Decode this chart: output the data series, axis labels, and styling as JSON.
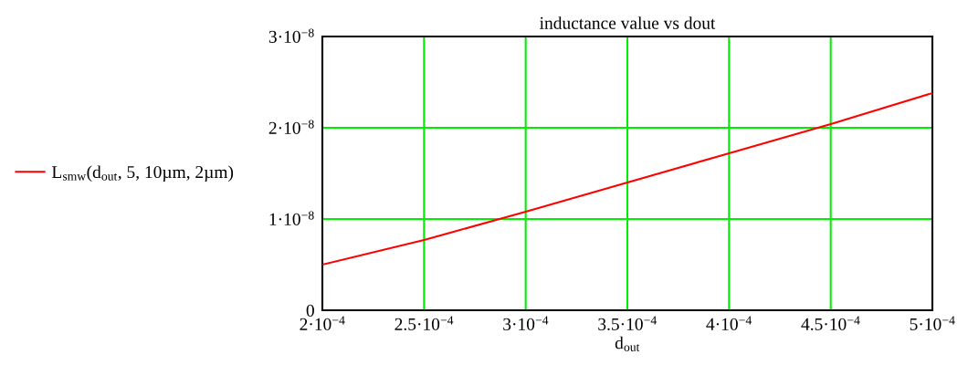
{
  "chart_data": {
    "type": "line",
    "title": "inductance value vs dout",
    "xlabel": "d$_{out}$",
    "x": [
      0.0002,
      0.00025,
      0.0003,
      0.00035,
      0.0004,
      0.00045,
      0.0005
    ],
    "series": [
      {
        "name": "L$_{smw}$(d$_{out}$, 5, 10µm, 2µm)",
        "color": "#ff0000",
        "values": [
          5e-09,
          7.7e-09,
          1.08e-08,
          1.4e-08,
          1.72e-08,
          2.04e-08,
          2.38e-08
        ]
      }
    ],
    "xlim": [
      0.0002,
      0.0005
    ],
    "ylim": [
      0,
      3e-08
    ],
    "xticks": [
      {
        "value": 0.0002,
        "label": "2·10$^{−4}$"
      },
      {
        "value": 0.00025,
        "label": "2.5·10$^{−4}$"
      },
      {
        "value": 0.0003,
        "label": "3·10$^{−4}$"
      },
      {
        "value": 0.00035,
        "label": "3.5·10$^{−4}$"
      },
      {
        "value": 0.0004,
        "label": "4·10$^{−4}$"
      },
      {
        "value": 0.00045,
        "label": "4.5·10$^{−4}$"
      },
      {
        "value": 0.0005,
        "label": "5·10$^{−4}$"
      }
    ],
    "yticks": [
      0,
      {
        "value": 1e-08,
        "label": "1·10$^{−8}$"
      },
      {
        "value": 2e-08,
        "label": "2·10$^{−8}$"
      },
      {
        "value": 3e-08,
        "label": "3·10$^{−8}$"
      }
    ],
    "grid": true,
    "legend": "left",
    "marker": "none",
    "line_style": "solid"
  }
}
